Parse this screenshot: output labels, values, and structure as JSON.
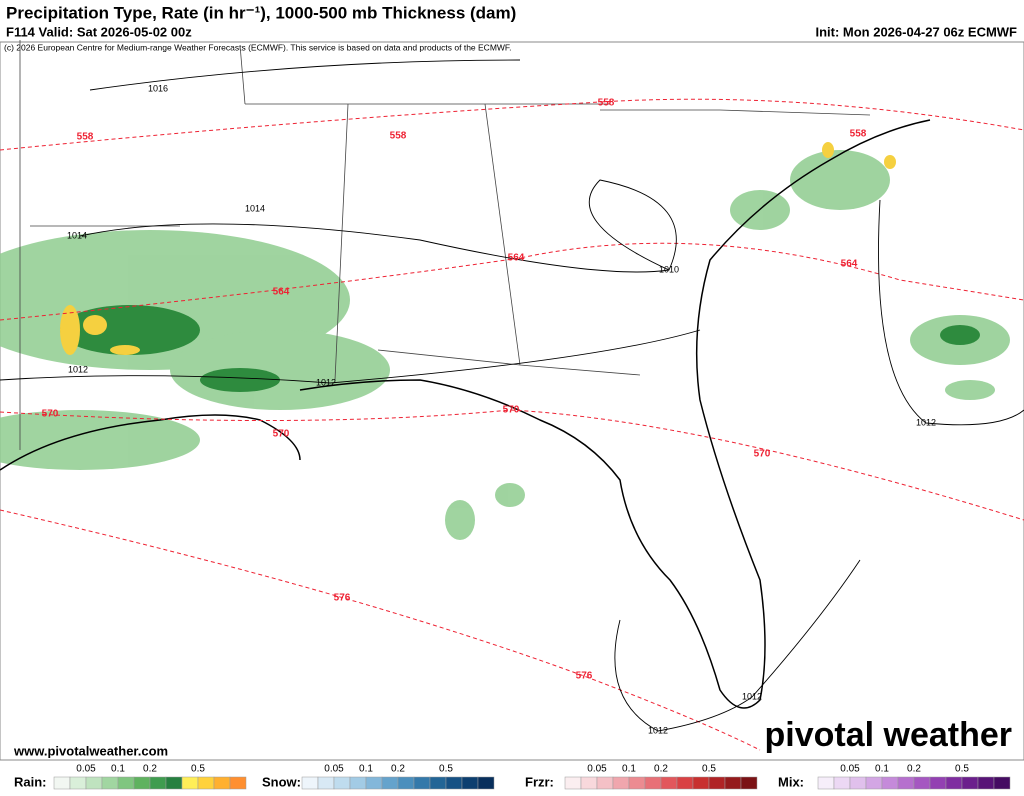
{
  "header": {
    "title": "Precipitation Type, Rate (in hr⁻¹), 1000-500 mb Thickness (dam)",
    "valid": "F114 Valid: Sat 2026-05-02 00z",
    "init": "Init: Mon 2026-04-27 06z ECMWF",
    "credit": "(c) 2026 European Centre for Medium-range Weather Forecasts (ECMWF). This service is based on data and products of the ECMWF."
  },
  "map": {
    "thickness_labels": [
      558,
      558,
      558,
      558,
      564,
      564,
      564,
      570,
      570,
      570,
      570,
      576,
      576
    ],
    "pressure_labels": [
      1016,
      1014,
      1014,
      1010,
      1012,
      1012,
      1012,
      1012,
      1012
    ]
  },
  "footer": {
    "url": "www.pivotalweather.com",
    "brand": "pivotal weather"
  },
  "legend": [
    {
      "name": "Rain:",
      "ticks": [
        0.05,
        0.1,
        0.2,
        0.5
      ],
      "colors": [
        "#f2f7f2",
        "#d9efd9",
        "#bfe3bf",
        "#a1d6a1",
        "#80c680",
        "#5fb25f",
        "#3f9c4f",
        "#268040",
        "#ffee58",
        "#ffd23c",
        "#ffb030",
        "#ff8f30"
      ]
    },
    {
      "name": "Snow:",
      "ticks": [
        0.05,
        0.1,
        0.2,
        0.5
      ],
      "colors": [
        "#eef5fb",
        "#d8e9f5",
        "#bfdcee",
        "#a2cbe5",
        "#83b7da",
        "#65a3cc",
        "#4b8fbd",
        "#3479aa",
        "#236596",
        "#165184",
        "#0d3f70",
        "#082f5c"
      ]
    },
    {
      "name": "Frzr:",
      "ticks": [
        0.05,
        0.1,
        0.2,
        0.5
      ],
      "colors": [
        "#fbeef0",
        "#f8d8dc",
        "#f4c0c6",
        "#f0a6ad",
        "#ec8b91",
        "#e87077",
        "#e2575c",
        "#d94144",
        "#c8302f",
        "#b02325",
        "#951a1c",
        "#7b1215"
      ]
    },
    {
      "name": "Mix:",
      "ticks": [
        0.05,
        0.1,
        0.2,
        0.5
      ],
      "colors": [
        "#f6eefa",
        "#ecd8f4",
        "#e0c0ec",
        "#d3a6e4",
        "#c58ada",
        "#b670ce",
        "#a557c1",
        "#9340b2",
        "#7f2da0",
        "#6b1f8c",
        "#581477",
        "#450c62"
      ]
    }
  ]
}
